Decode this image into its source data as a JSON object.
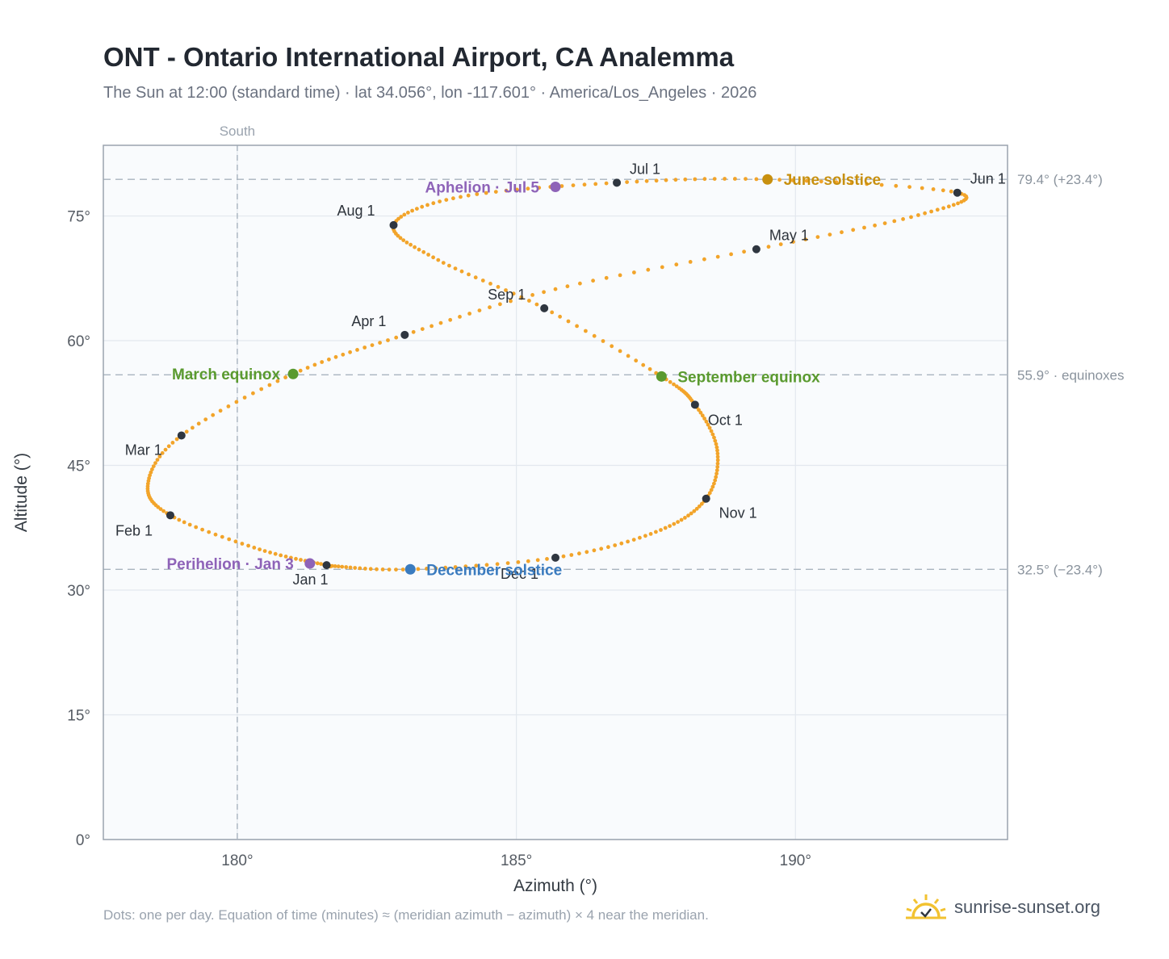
{
  "title": "ONT - Ontario International Airport, CA Analemma",
  "subtitle": "The Sun at 12:00 (standard time) · lat 34.056°, lon -117.601° · America/Los_Angeles · 2026",
  "footnote": "Dots: one per day. Equation of time (minutes) ≈ (meridian azimuth − azimuth) × 4 near the meridian.",
  "brand": "sunrise-sunset.org",
  "colors": {
    "curve": "#f2a42a",
    "month_marker": "#2f3640",
    "equinox": "#5a9a2f",
    "june_solstice": "#c8900f",
    "december_solstice": "#3a7bbf",
    "apsis": "#8e63b8",
    "axis_text": "#555b63",
    "ref_line": "#a9b4bf"
  },
  "chart_data": {
    "type": "scatter",
    "xlabel": "Azimuth (°)",
    "ylabel": "Altitude (°)",
    "xlim": [
      177.6,
      193.8
    ],
    "ylim": [
      0,
      83.5
    ],
    "xticks": [
      180,
      185,
      190
    ],
    "xtick_labels": [
      "180°",
      "185°",
      "190°"
    ],
    "yticks": [
      0,
      15,
      30,
      45,
      60,
      75
    ],
    "ytick_labels": [
      "0°",
      "15°",
      "30°",
      "45°",
      "60°",
      "75°"
    ],
    "grid": true,
    "south_line": {
      "azimuth": 180,
      "label": "South"
    },
    "reference_lines": [
      {
        "altitude": 79.4,
        "label": "79.4° (+23.4°)"
      },
      {
        "altitude": 55.9,
        "label": "55.9° · equinoxes"
      },
      {
        "altitude": 32.5,
        "label": "32.5° (−23.4°)"
      }
    ],
    "daily_path_anchors": [
      {
        "date": "Jan 1",
        "az": 181.6,
        "alt": 33.0
      },
      {
        "date": "Jan 15",
        "az": 180.4,
        "alt": 34.9
      },
      {
        "date": "Feb 1",
        "az": 178.8,
        "alt": 39.0
      },
      {
        "date": "Feb 12",
        "az": 178.4,
        "alt": 42.8
      },
      {
        "date": "Mar 1",
        "az": 179.0,
        "alt": 48.6
      },
      {
        "date": "Mar 20",
        "az": 181.0,
        "alt": 56.0
      },
      {
        "date": "Apr 1",
        "az": 183.0,
        "alt": 60.7
      },
      {
        "date": "Apr 15",
        "az": 185.7,
        "alt": 66.2
      },
      {
        "date": "May 1",
        "az": 189.3,
        "alt": 71.0
      },
      {
        "date": "May 15",
        "az": 192.2,
        "alt": 75.1
      },
      {
        "date": "Jun 1",
        "az": 192.9,
        "alt": 77.8
      },
      {
        "date": "Jun 21",
        "az": 189.5,
        "alt": 79.4
      },
      {
        "date": "Jul 1",
        "az": 186.8,
        "alt": 79.0
      },
      {
        "date": "Jul 15",
        "az": 184.0,
        "alt": 77.3
      },
      {
        "date": "Aug 1",
        "az": 182.8,
        "alt": 73.9
      },
      {
        "date": "Aug 15",
        "az": 183.6,
        "alt": 69.7
      },
      {
        "date": "Sep 1",
        "az": 185.5,
        "alt": 63.9
      },
      {
        "date": "Sep 22",
        "az": 187.6,
        "alt": 55.7
      },
      {
        "date": "Oct 1",
        "az": 188.2,
        "alt": 52.3
      },
      {
        "date": "Oct 15",
        "az": 188.6,
        "alt": 46.8
      },
      {
        "date": "Nov 1",
        "az": 188.4,
        "alt": 41.0
      },
      {
        "date": "Nov 15",
        "az": 187.5,
        "alt": 37.0
      },
      {
        "date": "Dec 1",
        "az": 185.7,
        "alt": 33.9
      },
      {
        "date": "Dec 21",
        "az": 183.1,
        "alt": 32.5
      },
      {
        "date": "Dec 31",
        "az": 181.7,
        "alt": 32.9
      }
    ],
    "month_points": [
      {
        "label": "Jan 1",
        "az": 181.6,
        "alt": 33.0
      },
      {
        "label": "Feb 1",
        "az": 178.8,
        "alt": 39.0
      },
      {
        "label": "Mar 1",
        "az": 179.0,
        "alt": 48.6
      },
      {
        "label": "Apr 1",
        "az": 183.0,
        "alt": 60.7
      },
      {
        "label": "May 1",
        "az": 189.3,
        "alt": 71.0
      },
      {
        "label": "Jun 1",
        "az": 192.9,
        "alt": 77.8
      },
      {
        "label": "Jul 1",
        "az": 186.8,
        "alt": 79.0
      },
      {
        "label": "Aug 1",
        "az": 182.8,
        "alt": 73.9
      },
      {
        "label": "Sep 1",
        "az": 185.5,
        "alt": 63.9
      },
      {
        "label": "Oct 1",
        "az": 188.2,
        "alt": 52.3
      },
      {
        "label": "Nov 1",
        "az": 188.4,
        "alt": 41.0
      },
      {
        "label": "Dec 1",
        "az": 185.7,
        "alt": 33.9
      }
    ],
    "events": [
      {
        "label": "March equinox",
        "az": 181.0,
        "alt": 56.0,
        "kind": "equinox"
      },
      {
        "label": "September equinox",
        "az": 187.6,
        "alt": 55.7,
        "kind": "equinox"
      },
      {
        "label": "June solstice",
        "az": 189.5,
        "alt": 79.4,
        "kind": "june_solstice"
      },
      {
        "label": "December solstice",
        "az": 183.1,
        "alt": 32.5,
        "kind": "december_solstice"
      },
      {
        "label": "Aphelion · Jul 5",
        "az": 185.7,
        "alt": 78.5,
        "kind": "apsis"
      },
      {
        "label": "Perihelion · Jan 3",
        "az": 181.3,
        "alt": 33.2,
        "kind": "apsis"
      }
    ]
  }
}
